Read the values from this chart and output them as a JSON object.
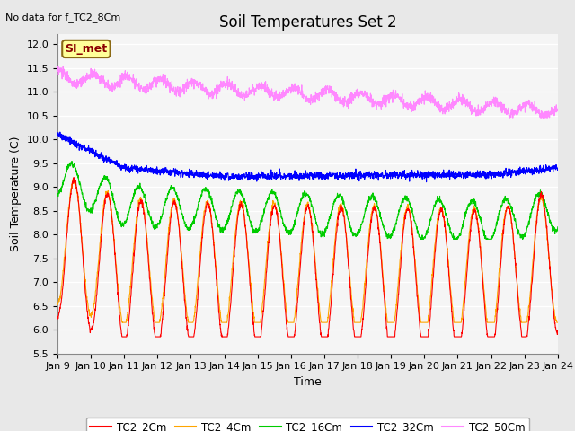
{
  "title": "Soil Temperatures Set 2",
  "subtitle": "No data for f_TC2_8Cm",
  "xlabel": "Time",
  "ylabel": "Soil Temperature (C)",
  "ylim": [
    5.5,
    12.2
  ],
  "tick_labels": [
    "Jan 9",
    "Jan 10",
    "Jan 11",
    "Jan 12",
    "Jan 13",
    "Jan 14",
    "Jan 15",
    "Jan 16",
    "Jan 17",
    "Jan 18",
    "Jan 19",
    "Jan 20",
    "Jan 21",
    "Jan 22",
    "Jan 23",
    "Jan 24"
  ],
  "legend_labels": [
    "TC2_2Cm",
    "TC2_4Cm",
    "TC2_16Cm",
    "TC2_32Cm",
    "TC2_50Cm"
  ],
  "colors": {
    "TC2_2Cm": "#FF0000",
    "TC2_4Cm": "#FFA500",
    "TC2_16Cm": "#00CC00",
    "TC2_32Cm": "#0000FF",
    "TC2_50Cm": "#FF88FF"
  },
  "SI_met_box_color": "#FFFF99",
  "SI_met_border_color": "#8B6914",
  "background_color": "#E8E8E8",
  "plot_bg_color": "#F5F5F5",
  "grid_color": "#FFFFFF",
  "title_fontsize": 12,
  "label_fontsize": 9,
  "tick_fontsize": 8
}
